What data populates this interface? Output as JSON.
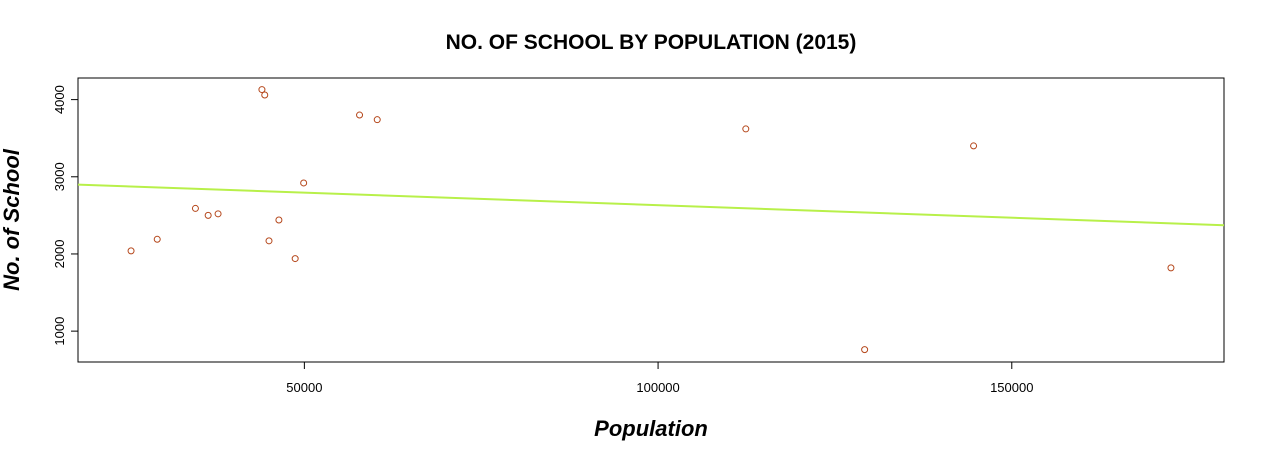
{
  "chart_data": {
    "type": "scatter",
    "title": "NO. OF SCHOOL BY POPULATION (2015)",
    "xlabel": "Population",
    "ylabel": "No. of School",
    "xlim": [
      18000,
      180000
    ],
    "ylim": [
      600,
      4280
    ],
    "x_ticks": [
      50000,
      100000,
      150000
    ],
    "y_ticks": [
      1000,
      2000,
      3000,
      4000
    ],
    "x_tick_labels": [
      "50000",
      "100000",
      "150000"
    ],
    "y_tick_labels": [
      "1000",
      "2000",
      "3000",
      "4000"
    ],
    "grid": false,
    "legend": "none",
    "points": [
      {
        "x": 25500,
        "y": 2040
      },
      {
        "x": 29200,
        "y": 2190
      },
      {
        "x": 34600,
        "y": 2590
      },
      {
        "x": 36400,
        "y": 2500
      },
      {
        "x": 37800,
        "y": 2520
      },
      {
        "x": 44000,
        "y": 4130
      },
      {
        "x": 44400,
        "y": 4060
      },
      {
        "x": 45000,
        "y": 2170
      },
      {
        "x": 46400,
        "y": 2440
      },
      {
        "x": 48700,
        "y": 1940
      },
      {
        "x": 49900,
        "y": 2920
      },
      {
        "x": 57800,
        "y": 3800
      },
      {
        "x": 60300,
        "y": 3740
      },
      {
        "x": 112400,
        "y": 3620
      },
      {
        "x": 129200,
        "y": 760
      },
      {
        "x": 144600,
        "y": 3400
      },
      {
        "x": 172500,
        "y": 1820
      }
    ],
    "trend_line": {
      "x": [
        18000,
        180000
      ],
      "y": [
        2898,
        2372
      ]
    },
    "colors": {
      "point": "#b5471b",
      "trend_line": "#b8f04a",
      "axis": "#000000",
      "background": "#ffffff"
    }
  }
}
